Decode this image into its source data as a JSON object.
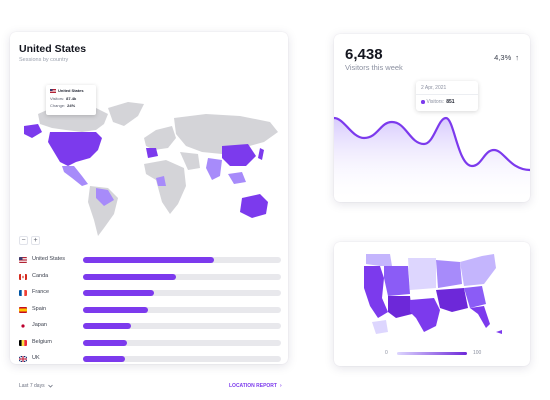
{
  "country_panel": {
    "title": "United States",
    "subtitle": "Sessions by country",
    "tooltip": {
      "country": "United States",
      "visitors_label": "Visitors:",
      "visitors_value": "87.4k",
      "change_label": "Change:",
      "change_value": "24%"
    },
    "zoom_out": "−",
    "zoom_in": "+",
    "countries": [
      {
        "name": "United States",
        "progress": 0.66
      },
      {
        "name": "Canda",
        "progress": 0.47
      },
      {
        "name": "France",
        "progress": 0.36
      },
      {
        "name": "Spain",
        "progress": 0.33
      },
      {
        "name": "Japan",
        "progress": 0.24
      },
      {
        "name": "Belgium",
        "progress": 0.22
      },
      {
        "name": "UK",
        "progress": 0.21
      }
    ],
    "period_label": "Last 7 days",
    "report_link": "LOCATION REPORT",
    "report_chevron": "›"
  },
  "visitors_panel": {
    "value": "6,438",
    "label": "Visitors this week",
    "change": "4,3%",
    "change_arrow": "↑",
    "tooltip": {
      "date": "2 Apr, 2021",
      "label": "Visitors:",
      "value": "851"
    }
  },
  "us_panel": {
    "legend_min": "0",
    "legend_max": "100"
  },
  "colors": {
    "accent": "#7c3aed",
    "track": "#e8e8ec",
    "map_gray": "#d4d4d8"
  }
}
